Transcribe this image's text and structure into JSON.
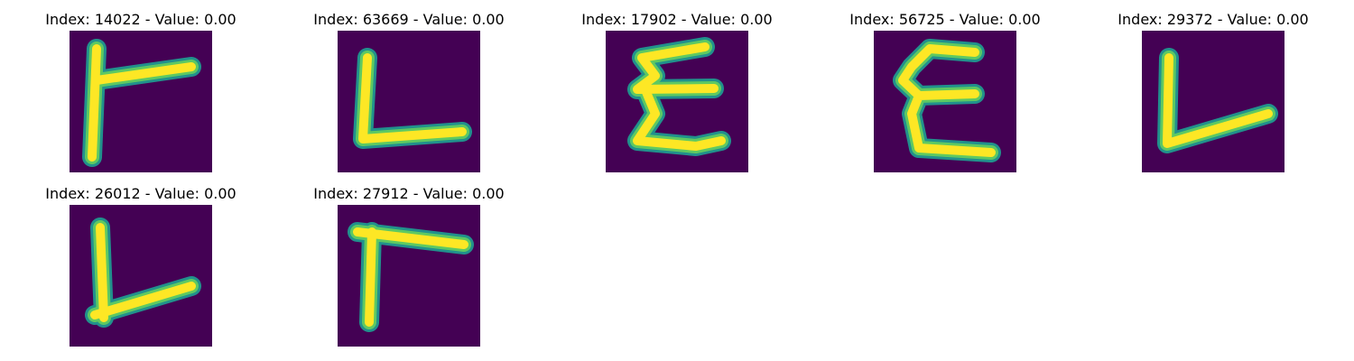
{
  "colors": {
    "background": "#440154",
    "stroke_edge": "#21918c",
    "stroke_mid": "#5ec962",
    "stroke_core": "#fde725"
  },
  "panels": [
    {
      "title": "Index: 14022 - Value: 0.00"
    },
    {
      "title": "Index: 63669 - Value: 0.00"
    },
    {
      "title": "Index: 17902 - Value: 0.00"
    },
    {
      "title": "Index: 56725 - Value: 0.00"
    },
    {
      "title": "Index: 29372 - Value: 0.00"
    },
    {
      "title": "Index: 26012 - Value: 0.00"
    },
    {
      "title": "Index: 27912 - Value: 0.00"
    }
  ]
}
